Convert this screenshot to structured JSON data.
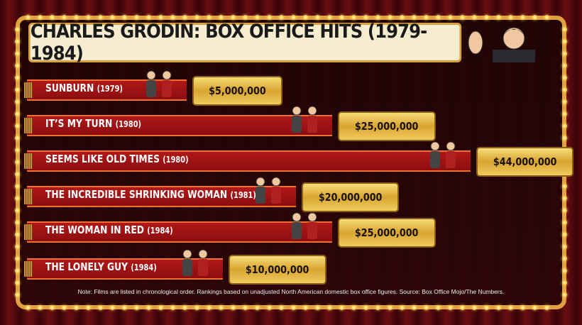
{
  "chart_data": {
    "type": "bar",
    "orientation": "horizontal",
    "title": "CHARLES GRODIN: BOX OFFICE HITS (1979-1984)",
    "categories": [
      {
        "name": "SUNBURN",
        "year": "(1979)"
      },
      {
        "name": "IT’S MY TURN",
        "year": "(1980)"
      },
      {
        "name": "SEEMS LIKE OLD TIMES",
        "year": "(1980)"
      },
      {
        "name": "THE INCREDIBLE SHRINKING WOMAN",
        "year": "(1981)"
      },
      {
        "name": "THE WOMAN IN RED",
        "year": "(1984)"
      },
      {
        "name": "THE LONELY GUY",
        "year": "(1984)"
      }
    ],
    "values": [
      5000000,
      25000000,
      44000000,
      20000000,
      25000000,
      10000000
    ],
    "value_labels": [
      "$5,000,000",
      "$25,000,000",
      "$44,000,000",
      "$20,000,000",
      "$25,000,000",
      "$10,000,000"
    ],
    "colors": {
      "bar": "#a01416",
      "tag": "#e0b040",
      "frame": "#e0a040"
    }
  },
  "note": "Note: Films are listed in chronological order. Rankings based on unadjusted North American domestic box office figures. Source: Box Office Mojo/The Numbers."
}
